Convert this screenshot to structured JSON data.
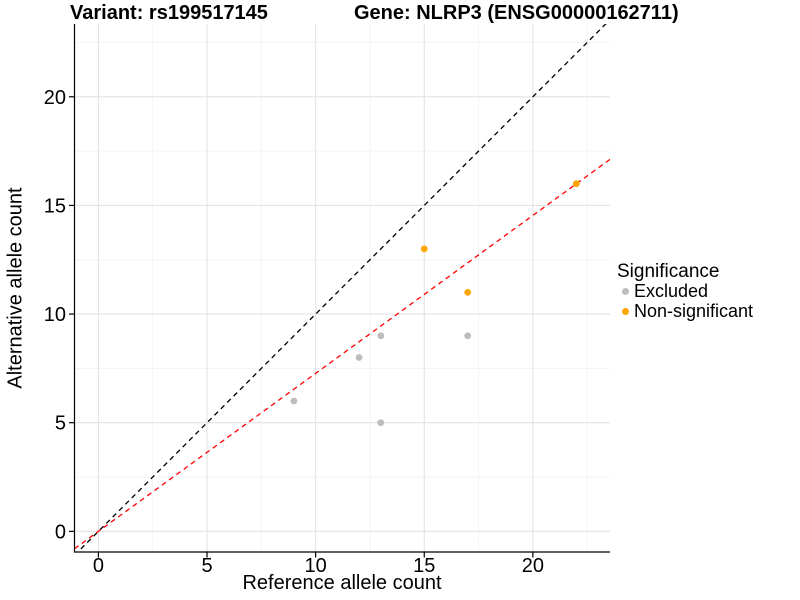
{
  "titles": {
    "variant": "Variant: rs199517145",
    "gene": "Gene: NLRP3 (ENSG00000162711)"
  },
  "chart_data": {
    "type": "scatter",
    "xlabel": "Reference allele count",
    "ylabel": "Alternative allele count",
    "legend_title": "Significance",
    "legend_position": "right",
    "grid": true,
    "xlim": [
      -1.1,
      23.55
    ],
    "ylim": [
      -0.95,
      23.35
    ],
    "x_ticks": [
      0,
      5,
      10,
      15,
      20
    ],
    "y_ticks": [
      0,
      5,
      10,
      15,
      20
    ],
    "x_minor_ticks": [
      2.5,
      7.5,
      12.5,
      17.5,
      22.5
    ],
    "y_minor_ticks": [
      2.5,
      7.5,
      12.5,
      17.5,
      22.5
    ],
    "series": [
      {
        "name": "Excluded",
        "color": "#bdbdbd",
        "points": [
          [
            9,
            6
          ],
          [
            12,
            8
          ],
          [
            13,
            5
          ],
          [
            13,
            9
          ],
          [
            17,
            9
          ]
        ]
      },
      {
        "name": "Non-significant",
        "color": "#ffa500",
        "points": [
          [
            15,
            13
          ],
          [
            17,
            11
          ],
          [
            22,
            16
          ]
        ]
      }
    ],
    "lines": [
      {
        "name": "identity",
        "slope": 1,
        "intercept": 0,
        "color": "#000000",
        "style": "dashed"
      },
      {
        "name": "fit",
        "slope": 0.727,
        "intercept": 0,
        "color": "#ff0000",
        "style": "dashed"
      }
    ]
  },
  "colors": {
    "grid_major": "#e3e3e3",
    "grid_minor": "#f2f2f2",
    "axis": "#000000",
    "tick_label": "#000000"
  }
}
